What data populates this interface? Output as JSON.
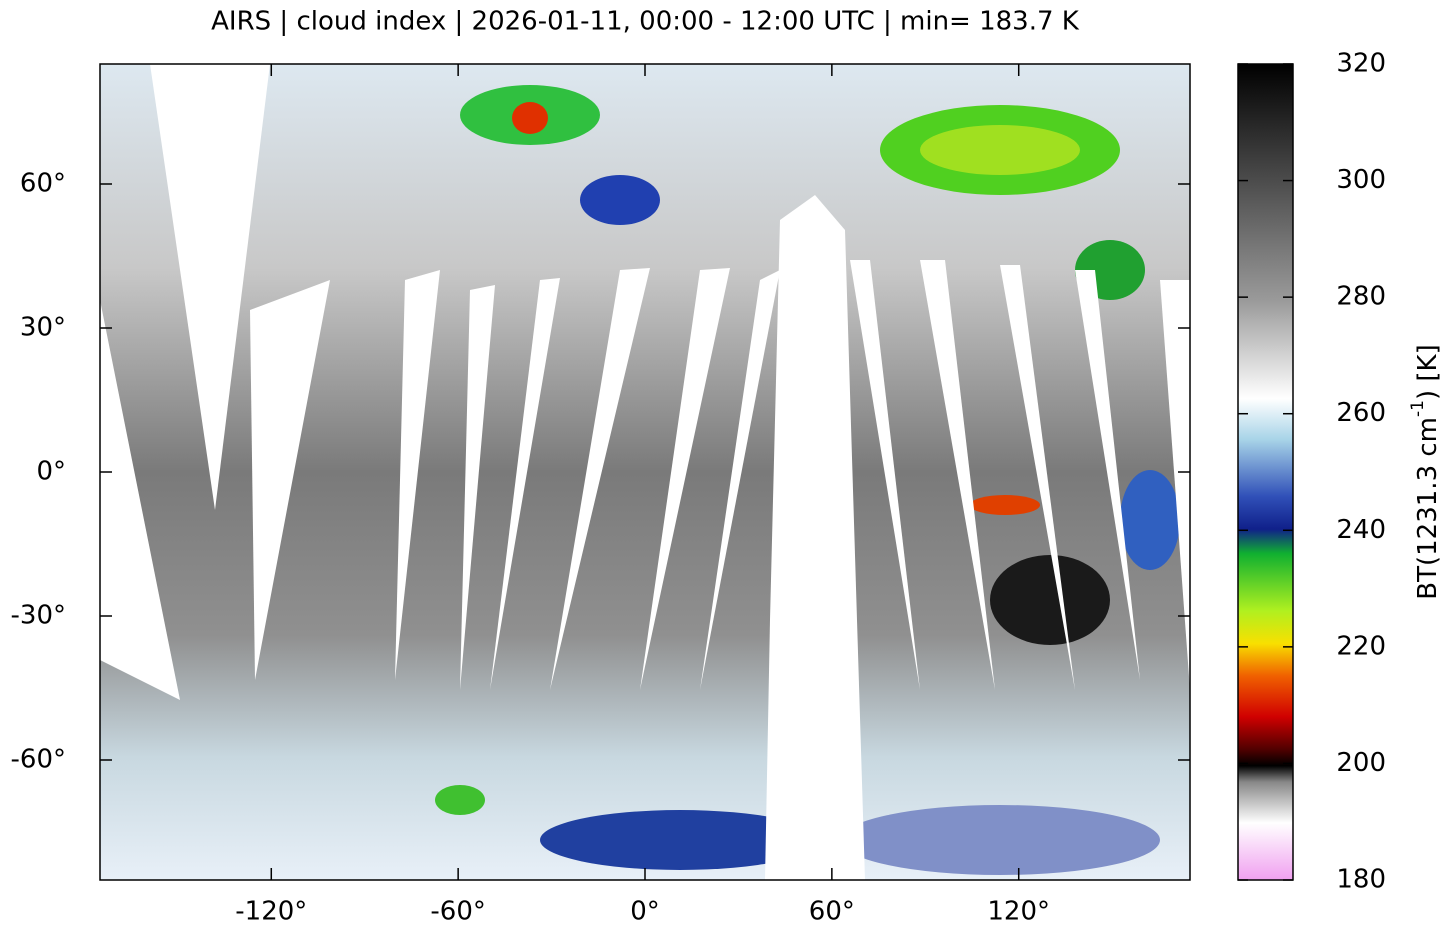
{
  "chart_data": {
    "type": "map",
    "title": "AIRS | cloud index | 2026-01-11, 00:00 - 12:00 UTC | min= 183.7 K",
    "xlim": [
      -175,
      175
    ],
    "ylim": [
      -85,
      85
    ],
    "xticks": [
      {
        "value": -120,
        "label": "-120°"
      },
      {
        "value": -60,
        "label": "-60°"
      },
      {
        "value": 0,
        "label": "0°"
      },
      {
        "value": 60,
        "label": "60°"
      },
      {
        "value": 120,
        "label": "120°"
      }
    ],
    "yticks": [
      {
        "value": -60,
        "label": "-60°"
      },
      {
        "value": -30,
        "label": "-30°"
      },
      {
        "value": 0,
        "label": "0°"
      },
      {
        "value": 30,
        "label": "30°"
      },
      {
        "value": 60,
        "label": "60°"
      }
    ],
    "colorbar": {
      "label": [
        "BT(1231.3 cm",
        "-1",
        ") [K]"
      ],
      "lim": [
        180,
        320
      ],
      "ticks": [
        180,
        200,
        220,
        240,
        260,
        280,
        300,
        320
      ]
    }
  }
}
